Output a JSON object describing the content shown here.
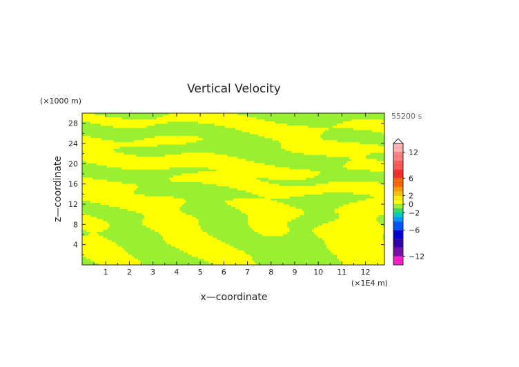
{
  "chart_data": {
    "type": "heatmap",
    "title": "Vertical Velocity",
    "xlabel": "x—coordinate",
    "ylabel": "z—coordinate",
    "x_unit": "(×1E4 m)",
    "y_unit": "(×1000 m)",
    "time_label": "55200 s",
    "xlim": [
      0,
      12.8
    ],
    "ylim": [
      0,
      30
    ],
    "x_ticks": [
      "1",
      "2",
      "3",
      "4",
      "5",
      "6",
      "7",
      "8",
      "9",
      "10",
      "11",
      "12"
    ],
    "y_ticks": [
      "4",
      "8",
      "12",
      "16",
      "20",
      "24",
      "28"
    ],
    "grid": false,
    "field_colors": {
      "positive": "#ffff00",
      "negative": "#99f033"
    },
    "colorbar": {
      "tick_labels": [
        "12",
        "6",
        "2",
        "0",
        "−2",
        "−6",
        "−12"
      ],
      "tick_values": [
        12,
        6,
        2,
        0,
        -2,
        -6,
        -12
      ],
      "range": [
        -14,
        14
      ],
      "bands": [
        {
          "from": 12,
          "to": 14,
          "color": "#ffb3b3"
        },
        {
          "from": 10,
          "to": 12,
          "color": "#ff8080"
        },
        {
          "from": 8,
          "to": 10,
          "color": "#ff5a5a"
        },
        {
          "from": 6,
          "to": 8,
          "color": "#ff2d2d"
        },
        {
          "from": 4,
          "to": 6,
          "color": "#ff6a00"
        },
        {
          "from": 3,
          "to": 4,
          "color": "#ff9900"
        },
        {
          "from": 2,
          "to": 3,
          "color": "#ffc000"
        },
        {
          "from": 1,
          "to": 2,
          "color": "#ffee00"
        },
        {
          "from": 0,
          "to": 1,
          "color": "#ffff00"
        },
        {
          "from": -1,
          "to": 0,
          "color": "#99f033"
        },
        {
          "from": -2,
          "to": -1,
          "color": "#33dd66"
        },
        {
          "from": -3,
          "to": -2,
          "color": "#00cccc"
        },
        {
          "from": -4,
          "to": -3,
          "color": "#0099ff"
        },
        {
          "from": -6,
          "to": -4,
          "color": "#0055ff"
        },
        {
          "from": -8,
          "to": -6,
          "color": "#0000dd"
        },
        {
          "from": -10,
          "to": -8,
          "color": "#3300aa"
        },
        {
          "from": -12,
          "to": -10,
          "color": "#7a11aa"
        },
        {
          "from": -14,
          "to": -12,
          "color": "#ff22cc"
        }
      ]
    }
  }
}
